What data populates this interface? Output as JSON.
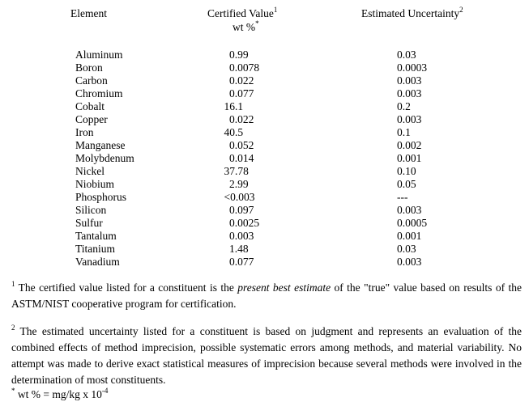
{
  "header": {
    "element": "Element",
    "certified_value": "Certified Value",
    "certified_sup": "1",
    "unit": "wt %",
    "unit_sup": "*",
    "uncertainty": "Estimated Uncertainty",
    "uncertainty_sup": "2"
  },
  "rows": [
    {
      "element": "Aluminum",
      "value": "0.99",
      "uncertainty": "0.03"
    },
    {
      "element": "Boron",
      "value": "0.0078",
      "uncertainty": "0.0003"
    },
    {
      "element": "Carbon",
      "value": "0.022",
      "uncertainty": "0.003"
    },
    {
      "element": "Chromium",
      "value": "0.077",
      "uncertainty": "0.003"
    },
    {
      "element": "Cobalt",
      "value": "16.1",
      "uncertainty": "0.2"
    },
    {
      "element": "Copper",
      "value": "0.022",
      "uncertainty": "0.003"
    },
    {
      "element": "Iron",
      "value": "40.5",
      "uncertainty": "0.1"
    },
    {
      "element": "Manganese",
      "value": "0.052",
      "uncertainty": "0.002"
    },
    {
      "element": "Molybdenum",
      "value": "0.014",
      "uncertainty": "0.001"
    },
    {
      "element": "Nickel",
      "value": "37.78",
      "uncertainty": "0.10"
    },
    {
      "element": "Niobium",
      "value": "2.99",
      "uncertainty": "0.05"
    },
    {
      "element": "Phosphorus",
      "value": "<0.003",
      "uncertainty": "---"
    },
    {
      "element": "Silicon",
      "value": "0.097",
      "uncertainty": "0.003"
    },
    {
      "element": "Sulfur",
      "value": "0.0025",
      "uncertainty": "0.0005"
    },
    {
      "element": "Tantalum",
      "value": "0.003",
      "uncertainty": "0.001"
    },
    {
      "element": "Titanium",
      "value": "1.48",
      "uncertainty": "0.03"
    },
    {
      "element": "Vanadium",
      "value": "0.077",
      "uncertainty": "0.003"
    }
  ],
  "footnotes": {
    "fn1_mark": "1",
    "fn1_a": " The certified value listed for a constituent is the ",
    "fn1_em": "present best estimate",
    "fn1_b": " of the \"true\" value based on results of the ASTM/NIST cooperative program for certification.",
    "fn2_mark": "2",
    "fn2": " The estimated uncertainty listed for a constituent is based on judgment and represents an evaluation of the combined effects of method imprecision, possible systematic errors among methods, and material variability.  No attempt was made to derive exact statistical measures of imprecision because several methods were involved in the determination of most constituents.",
    "star_mark": "*",
    "star_text": " wt % = mg/kg x 10",
    "star_exp": "-4"
  }
}
